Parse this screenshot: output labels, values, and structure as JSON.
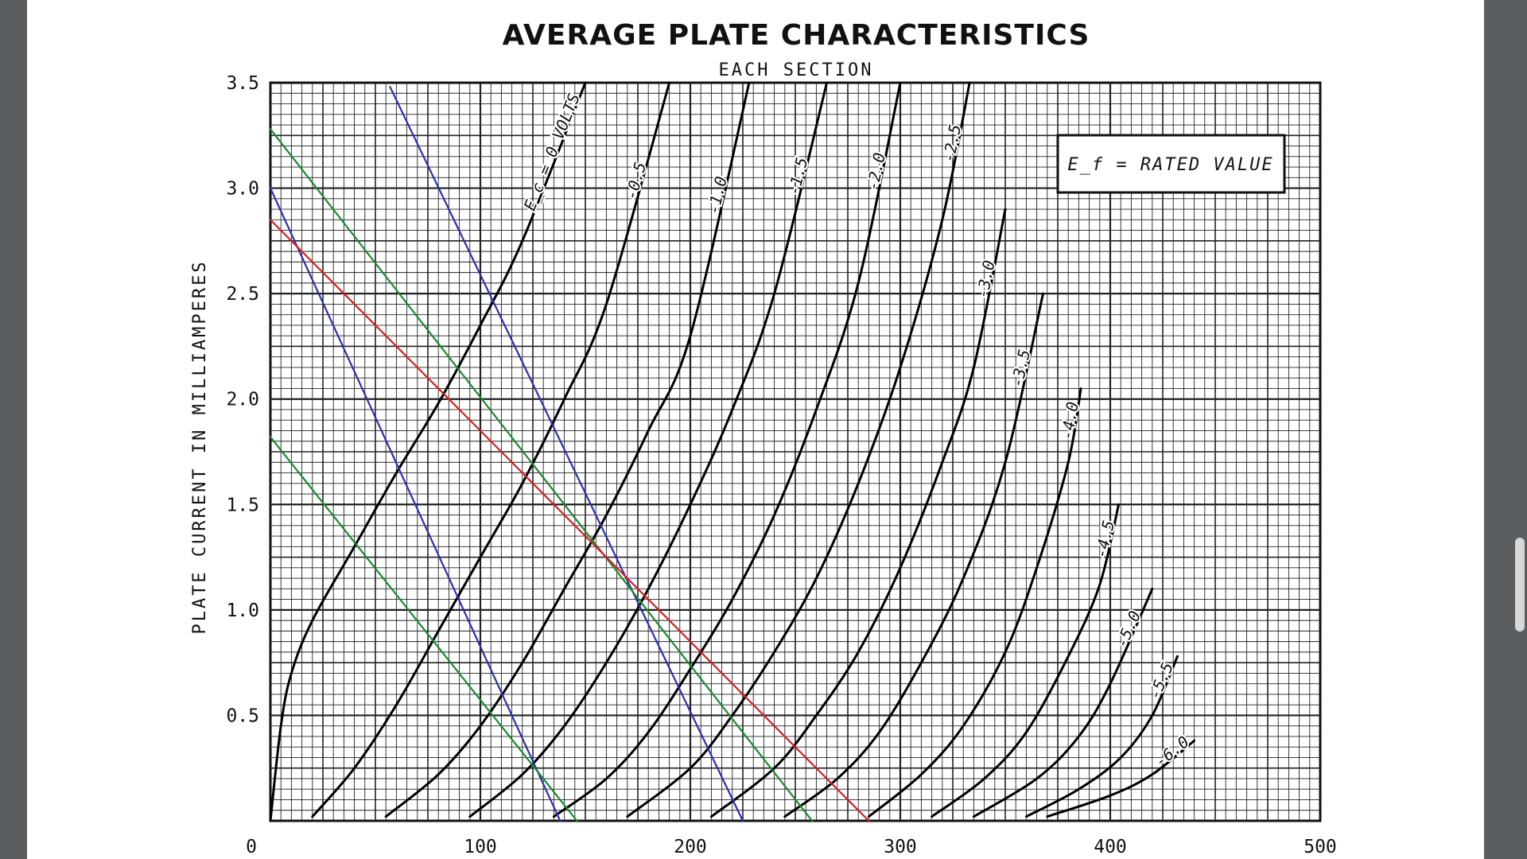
{
  "chart_data": {
    "type": "line",
    "title": "AVERAGE PLATE CHARACTERISTICS",
    "subtitle": "EACH SECTION",
    "xlabel": "",
    "ylabel": "PLATE CURRENT IN MILLIAMPERES",
    "xlim": [
      0,
      500
    ],
    "ylim": [
      0,
      3.5
    ],
    "x_ticks": [
      "0",
      "100",
      "200",
      "300",
      "400",
      "500"
    ],
    "y_ticks": [
      "0.5",
      "1.0",
      "1.5",
      "2.0",
      "2.5",
      "3.0",
      "3.5"
    ],
    "grid": true,
    "legend_box": {
      "text": "E_f = RATED VALUE",
      "placement": "top-right"
    },
    "series": [
      {
        "label": "E_c = 0 VOLTS",
        "color": "#000000",
        "points": [
          [
            0,
            0
          ],
          [
            5,
            0.45
          ],
          [
            10,
            0.7
          ],
          [
            20,
            0.95
          ],
          [
            40,
            1.3
          ],
          [
            60,
            1.65
          ],
          [
            80,
            1.98
          ],
          [
            100,
            2.35
          ],
          [
            120,
            2.75
          ],
          [
            150,
            3.5
          ]
        ]
      },
      {
        "label": "-0.5",
        "color": "#000000",
        "points": [
          [
            20,
            0.02
          ],
          [
            40,
            0.25
          ],
          [
            60,
            0.55
          ],
          [
            80,
            0.9
          ],
          [
            100,
            1.25
          ],
          [
            120,
            1.6
          ],
          [
            140,
            2.0
          ],
          [
            160,
            2.45
          ],
          [
            190,
            3.5
          ]
        ]
      },
      {
        "label": "-1.0",
        "color": "#000000",
        "points": [
          [
            55,
            0.02
          ],
          [
            80,
            0.22
          ],
          [
            100,
            0.45
          ],
          [
            120,
            0.75
          ],
          [
            140,
            1.1
          ],
          [
            160,
            1.45
          ],
          [
            180,
            1.85
          ],
          [
            200,
            2.3
          ],
          [
            228,
            3.5
          ]
        ]
      },
      {
        "label": "-1.5",
        "color": "#000000",
        "points": [
          [
            95,
            0.02
          ],
          [
            120,
            0.22
          ],
          [
            140,
            0.45
          ],
          [
            160,
            0.75
          ],
          [
            180,
            1.1
          ],
          [
            200,
            1.5
          ],
          [
            220,
            1.95
          ],
          [
            240,
            2.5
          ],
          [
            265,
            3.5
          ]
        ]
      },
      {
        "label": "-2.0",
        "color": "#000000",
        "points": [
          [
            135,
            0.02
          ],
          [
            160,
            0.2
          ],
          [
            180,
            0.42
          ],
          [
            200,
            0.72
          ],
          [
            220,
            1.05
          ],
          [
            240,
            1.45
          ],
          [
            260,
            1.95
          ],
          [
            280,
            2.55
          ],
          [
            300,
            3.5
          ]
        ]
      },
      {
        "label": "-2.5",
        "color": "#000000",
        "points": [
          [
            170,
            0.02
          ],
          [
            200,
            0.25
          ],
          [
            220,
            0.5
          ],
          [
            240,
            0.8
          ],
          [
            260,
            1.15
          ],
          [
            280,
            1.6
          ],
          [
            300,
            2.15
          ],
          [
            320,
            2.85
          ],
          [
            333,
            3.5
          ]
        ]
      },
      {
        "label": "-3.0",
        "color": "#000000",
        "points": [
          [
            210,
            0.02
          ],
          [
            240,
            0.25
          ],
          [
            260,
            0.5
          ],
          [
            280,
            0.8
          ],
          [
            300,
            1.2
          ],
          [
            320,
            1.7
          ],
          [
            335,
            2.15
          ],
          [
            350,
            2.9
          ]
        ]
      },
      {
        "label": "-3.5",
        "color": "#000000",
        "points": [
          [
            245,
            0.02
          ],
          [
            270,
            0.2
          ],
          [
            290,
            0.42
          ],
          [
            310,
            0.75
          ],
          [
            330,
            1.15
          ],
          [
            350,
            1.7
          ],
          [
            368,
            2.5
          ]
        ]
      },
      {
        "label": "-4.0",
        "color": "#000000",
        "points": [
          [
            285,
            0.02
          ],
          [
            310,
            0.22
          ],
          [
            330,
            0.45
          ],
          [
            350,
            0.8
          ],
          [
            365,
            1.2
          ],
          [
            380,
            1.7
          ],
          [
            386,
            2.05
          ]
        ]
      },
      {
        "label": "-4.5",
        "color": "#000000",
        "points": [
          [
            315,
            0.02
          ],
          [
            340,
            0.2
          ],
          [
            360,
            0.42
          ],
          [
            380,
            0.78
          ],
          [
            395,
            1.12
          ],
          [
            404,
            1.5
          ]
        ]
      },
      {
        "label": "-5.0",
        "color": "#000000",
        "points": [
          [
            335,
            0.02
          ],
          [
            365,
            0.2
          ],
          [
            385,
            0.4
          ],
          [
            400,
            0.65
          ],
          [
            420,
            1.1
          ]
        ]
      },
      {
        "label": "-5.5",
        "color": "#000000",
        "points": [
          [
            360,
            0.02
          ],
          [
            385,
            0.15
          ],
          [
            405,
            0.3
          ],
          [
            420,
            0.5
          ],
          [
            432,
            0.78
          ]
        ]
      },
      {
        "label": "-6.0",
        "color": "#000000",
        "points": [
          [
            370,
            0.02
          ],
          [
            400,
            0.12
          ],
          [
            420,
            0.22
          ],
          [
            440,
            0.38
          ]
        ]
      },
      {
        "label": "",
        "color": "#2b2fae",
        "points": [
          [
            0,
            3.0
          ],
          [
            138,
            0
          ]
        ]
      },
      {
        "label": "",
        "color": "#2b2fae",
        "points": [
          [
            57,
            3.48
          ],
          [
            225,
            0
          ]
        ]
      },
      {
        "label": "",
        "color": "#1a8a2e",
        "points": [
          [
            0,
            1.82
          ],
          [
            146,
            0
          ]
        ]
      },
      {
        "label": "",
        "color": "#1a8a2e",
        "points": [
          [
            0,
            3.28
          ],
          [
            258,
            0
          ]
        ]
      },
      {
        "label": "",
        "color": "#d42020",
        "points": [
          [
            0,
            2.85
          ],
          [
            285,
            0
          ]
        ]
      }
    ]
  }
}
